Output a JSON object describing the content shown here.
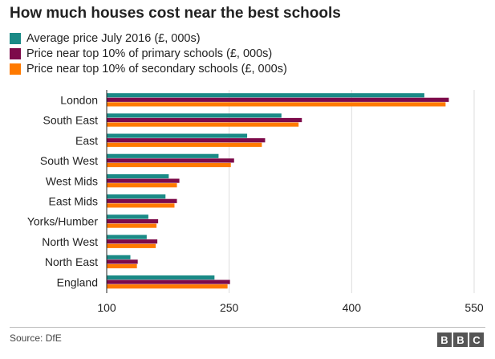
{
  "chart_data": {
    "type": "bar",
    "orientation": "horizontal",
    "title": "How much houses cost near the best schools",
    "categories": [
      "London",
      "South East",
      "East",
      "South West",
      "West Mids",
      "East Mids",
      "Yorks/Humber",
      "North West",
      "North East",
      "England"
    ],
    "series": [
      {
        "name": "Average price July 2016 (£, 000s)",
        "color": "#1a8a86",
        "values": [
          489,
          314,
          272,
          237,
          176,
          172,
          151,
          149,
          129,
          232
        ]
      },
      {
        "name": "Price near top 10% of primary schools (£, 000s)",
        "color": "#7d0a4a",
        "values": [
          519,
          339,
          294,
          256,
          189,
          186,
          163,
          162,
          138,
          251
        ]
      },
      {
        "name": "Price near top 10% of secondary schools (£, 000s)",
        "color": "#ff7a00",
        "values": [
          515,
          335,
          290,
          252,
          186,
          183,
          161,
          160,
          137,
          248
        ]
      }
    ],
    "xlim": [
      100,
      550
    ],
    "xticks": [
      100,
      250,
      400,
      550
    ],
    "xlabel": "",
    "ylabel": "",
    "grid": true
  },
  "footer": {
    "source": "Source: DfE",
    "logo_letters": [
      "B",
      "B",
      "C"
    ]
  }
}
